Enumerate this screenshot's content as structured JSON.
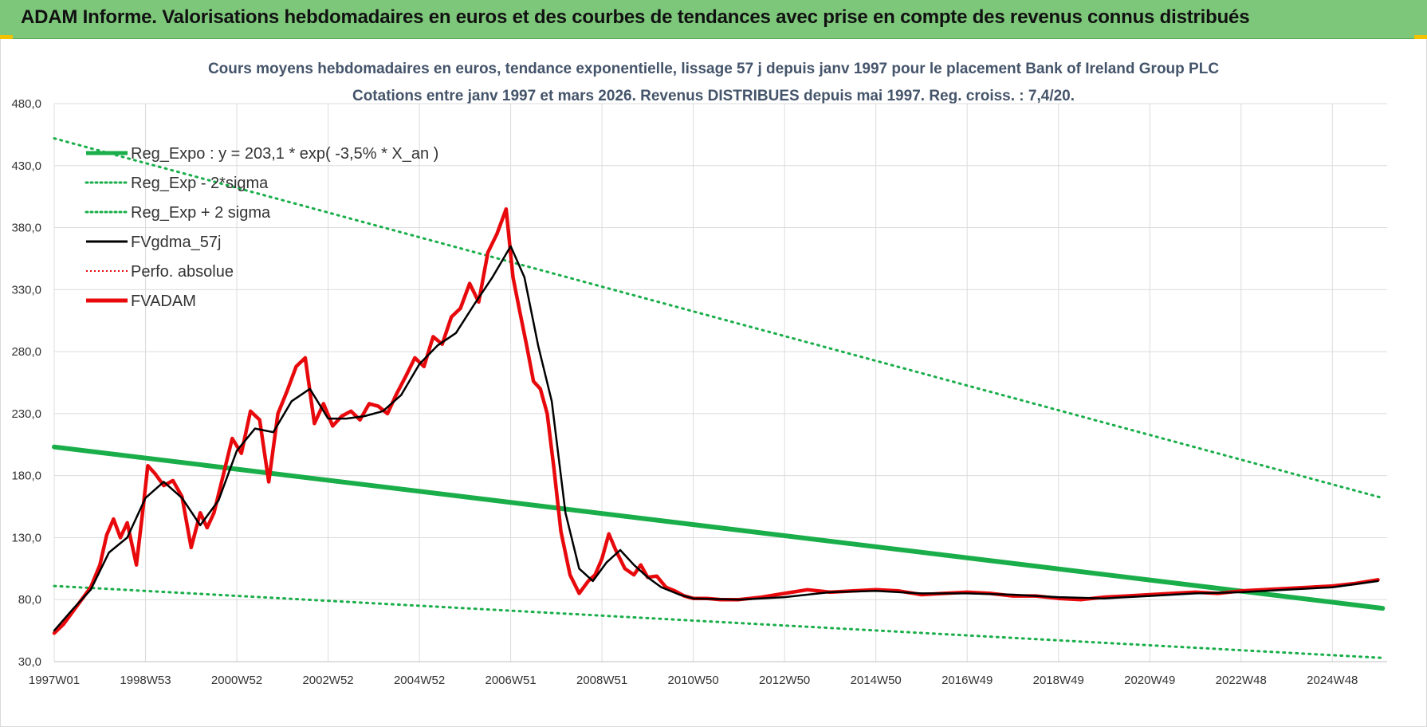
{
  "banner": {
    "title": "ADAM Informe. Valorisations hebdomadaires en euros et des courbes de tendances avec prise en compte des revenus connus distribués"
  },
  "colors": {
    "banner_bg": "#7dc77a",
    "reg_green": "#1aae4a",
    "adam_red": "#e8090c",
    "gdma_black": "#000000",
    "title_color": "#44546a"
  },
  "chart_data": {
    "type": "line",
    "title_line1": "Cours moyens hebdomadaires en euros, tendance exponentielle, lissage 57 j depuis janv 1997  pour le placement Bank of Ireland Group PLC",
    "title_line2": "Cotations entre janv 1997 et mars 2026. Revenus DISTRIBUES depuis mai 1997. Reg. croiss. : 7,4/20.",
    "x_range": [
      1997.0,
      2026.2
    ],
    "ylim": [
      30,
      480
    ],
    "y_ticks": [
      "30,0",
      "80,0",
      "130,0",
      "180,0",
      "230,0",
      "280,0",
      "330,0",
      "380,0",
      "430,0",
      "480,0"
    ],
    "y_tick_values": [
      30,
      80,
      130,
      180,
      230,
      280,
      330,
      380,
      430,
      480
    ],
    "x_tick_labels": [
      "1997W01",
      "1998W53",
      "2000W52",
      "2002W52",
      "2004W52",
      "2006W51",
      "2008W51",
      "2010W50",
      "2012W50",
      "2014W50",
      "2016W49",
      "2018W49",
      "2020W49",
      "2022W48",
      "2024W48"
    ],
    "x_tick_values": [
      1997.0,
      1999.0,
      2001.0,
      2003.0,
      2005.0,
      2007.0,
      2009.0,
      2011.0,
      2013.0,
      2015.0,
      2017.0,
      2019.0,
      2021.0,
      2023.0,
      2025.0
    ],
    "legend": [
      {
        "key": "reg_expo",
        "label": "Reg_Expo : y = 203,1 * exp( -3,5% *  X_an )",
        "style": "solid-thick",
        "color": "#1aae4a"
      },
      {
        "key": "reg_minus",
        "label": "Reg_Exp - 2*sigma",
        "style": "dotted",
        "color": "#1aae4a"
      },
      {
        "key": "reg_plus",
        "label": "Reg_Exp + 2 sigma",
        "style": "dotted",
        "color": "#1aae4a"
      },
      {
        "key": "gdma",
        "label": "FVgdma_57j",
        "style": "solid",
        "color": "#000000"
      },
      {
        "key": "perfo",
        "label": "Perfo. absolue",
        "style": "dotted",
        "color": "#e8090c"
      },
      {
        "key": "adam",
        "label": "FVADAM",
        "style": "solid-thick",
        "color": "#e8090c"
      }
    ],
    "series": [
      {
        "name": "Reg_Expo",
        "x": [
          1997.0,
          2026.1
        ],
        "y": [
          203.1,
          73
        ]
      },
      {
        "name": "Reg_Exp - 2*sigma",
        "x": [
          1997.0,
          2026.1
        ],
        "y": [
          91,
          33
        ]
      },
      {
        "name": "Reg_Exp + 2 sigma",
        "x": [
          1997.0,
          2026.1
        ],
        "y": [
          452,
          162
        ]
      },
      {
        "name": "FVADAM",
        "x": [
          1997.0,
          1997.2,
          1997.4,
          1997.6,
          1997.8,
          1998.0,
          1998.15,
          1998.3,
          1998.45,
          1998.6,
          1998.8,
          1998.95,
          1999.05,
          1999.2,
          1999.4,
          1999.6,
          1999.8,
          2000.0,
          2000.2,
          2000.35,
          2000.5,
          2000.7,
          2000.9,
          2001.1,
          2001.3,
          2001.5,
          2001.7,
          2001.9,
          2002.1,
          2002.3,
          2002.5,
          2002.7,
          2002.9,
          2003.1,
          2003.3,
          2003.5,
          2003.7,
          2003.9,
          2004.1,
          2004.3,
          2004.5,
          2004.7,
          2004.9,
          2005.1,
          2005.3,
          2005.5,
          2005.7,
          2005.9,
          2006.1,
          2006.3,
          2006.5,
          2006.7,
          2006.9,
          2007.05,
          2007.2,
          2007.35,
          2007.5,
          2007.65,
          2007.8,
          2007.95,
          2008.1,
          2008.3,
          2008.5,
          2008.7,
          2008.85,
          2009.0,
          2009.15,
          2009.3,
          2009.5,
          2009.7,
          2009.85,
          2010.0,
          2010.2,
          2010.4,
          2010.6,
          2010.8,
          2011.0,
          2011.3,
          2011.6,
          2012.0,
          2012.5,
          2013.0,
          2013.5,
          2014.0,
          2014.5,
          2015.0,
          2015.5,
          2016.0,
          2016.5,
          2017.0,
          2017.5,
          2018.0,
          2018.5,
          2019.0,
          2019.5,
          2020.0,
          2020.5,
          2021.0,
          2021.5,
          2022.0,
          2022.5,
          2023.0,
          2023.5,
          2024.0,
          2024.5,
          2025.0,
          2025.5,
          2026.0
        ],
        "y": [
          53,
          60,
          70,
          80,
          90,
          108,
          132,
          145,
          130,
          142,
          108,
          155,
          188,
          182,
          172,
          176,
          163,
          122,
          150,
          138,
          150,
          180,
          210,
          198,
          232,
          225,
          175,
          230,
          248,
          268,
          275,
          222,
          238,
          220,
          228,
          232,
          225,
          238,
          236,
          230,
          246,
          260,
          275,
          268,
          292,
          286,
          308,
          315,
          335,
          320,
          360,
          375,
          395,
          340,
          312,
          285,
          256,
          250,
          230,
          185,
          135,
          100,
          85,
          95,
          100,
          113,
          133,
          120,
          105,
          100,
          108,
          98,
          99,
          90,
          87,
          83,
          81,
          81,
          80,
          80,
          82,
          85,
          88,
          86,
          87,
          88,
          87,
          84,
          85,
          86,
          85,
          83,
          83,
          81,
          80,
          82,
          83,
          84,
          85,
          86,
          85,
          87,
          88,
          89,
          90,
          91,
          93,
          96
        ]
      },
      {
        "name": "FVgdma_57j",
        "x": [
          1997.0,
          1997.4,
          1997.8,
          1998.2,
          1998.6,
          1999.0,
          1999.4,
          1999.8,
          2000.2,
          2000.6,
          2001.0,
          2001.4,
          2001.8,
          2002.2,
          2002.6,
          2003.0,
          2003.4,
          2003.8,
          2004.2,
          2004.6,
          2005.0,
          2005.4,
          2005.8,
          2006.2,
          2006.6,
          2007.0,
          2007.3,
          2007.6,
          2007.9,
          2008.2,
          2008.5,
          2008.8,
          2009.1,
          2009.4,
          2009.7,
          2010.0,
          2010.3,
          2010.7,
          2011.0,
          2012.0,
          2013.0,
          2014.0,
          2015.0,
          2016.0,
          2017.0,
          2018.0,
          2019.0,
          2020.0,
          2021.0,
          2022.0,
          2023.0,
          2024.0,
          2025.0,
          2026.0
        ],
        "y": [
          55,
          72,
          88,
          118,
          130,
          162,
          175,
          162,
          140,
          160,
          200,
          218,
          215,
          240,
          250,
          226,
          226,
          228,
          232,
          245,
          270,
          285,
          295,
          318,
          340,
          365,
          340,
          285,
          240,
          150,
          105,
          95,
          110,
          120,
          108,
          98,
          90,
          84,
          81,
          80,
          82,
          86,
          87,
          85,
          85,
          84,
          82,
          81,
          83,
          85,
          86,
          88,
          90,
          95
        ]
      }
    ]
  }
}
